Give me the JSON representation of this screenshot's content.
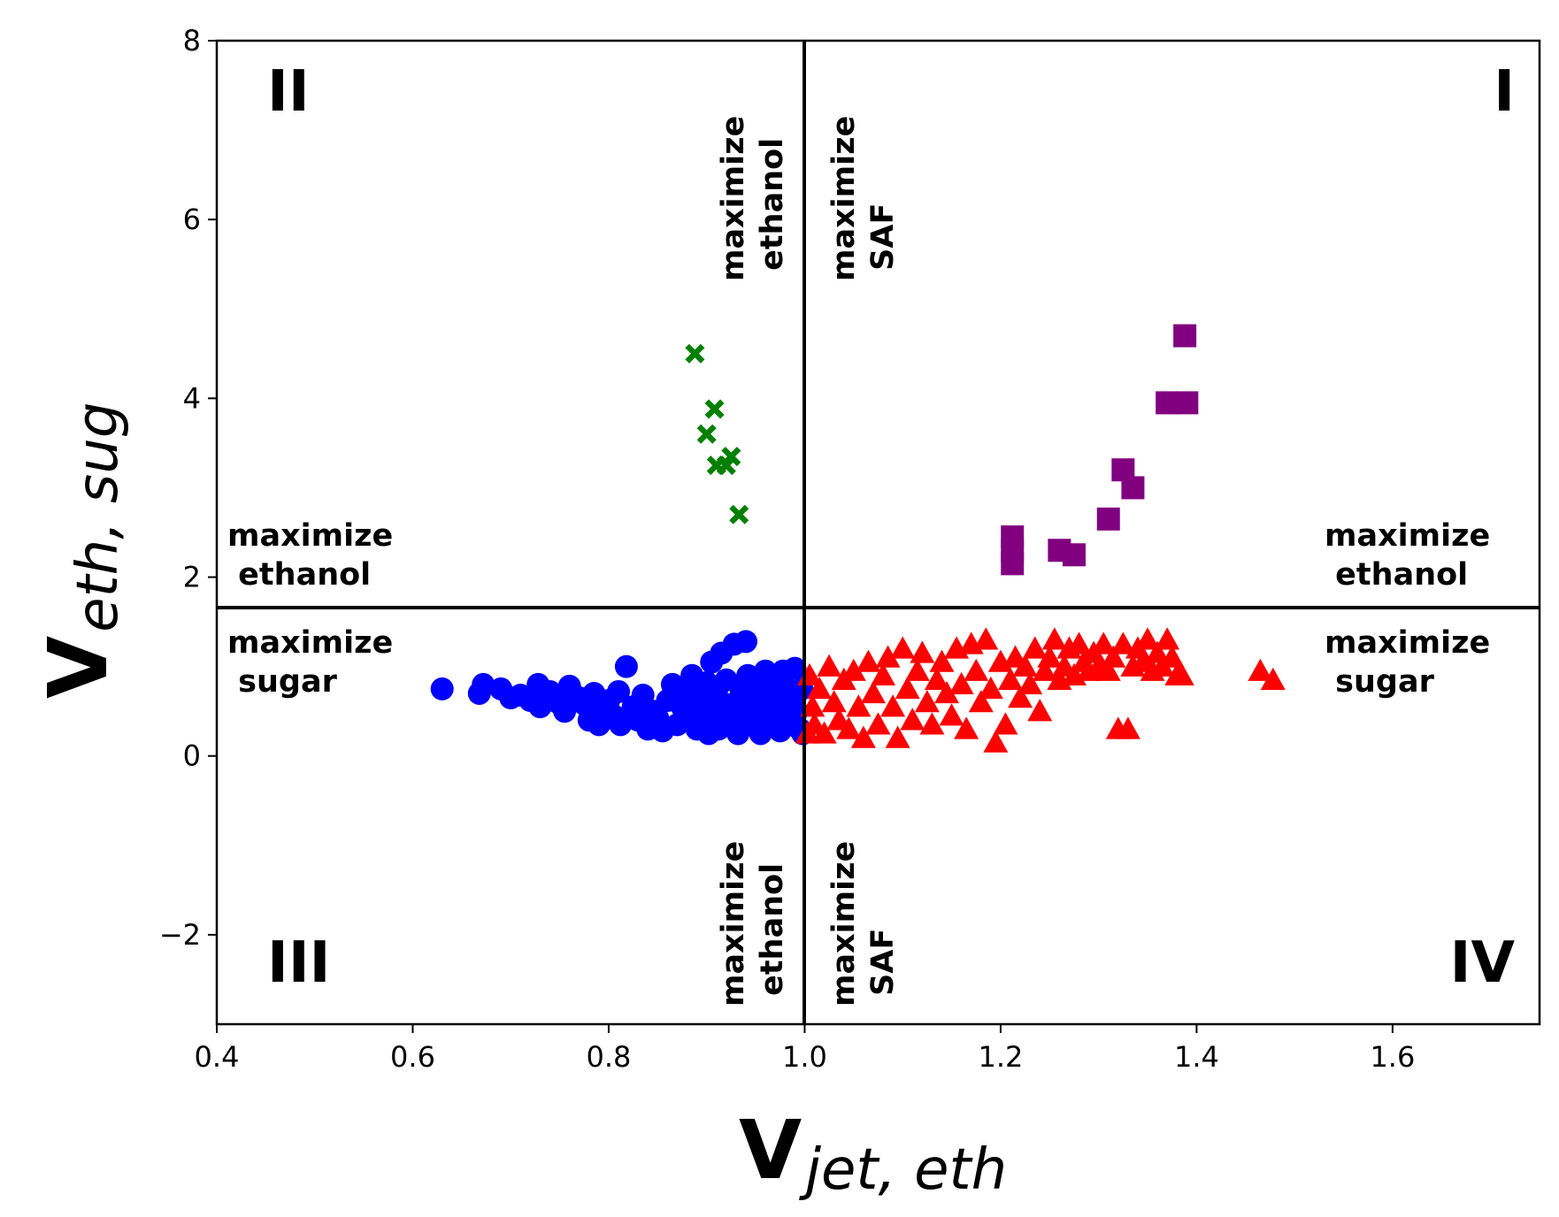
{
  "chart_data": {
    "type": "scatter",
    "xlabel": {
      "main": "V",
      "sub": "jet, eth"
    },
    "ylabel": {
      "main": "V",
      "sub": "eth, sug"
    },
    "xlim": [
      0.4,
      1.75
    ],
    "ylim": [
      -3,
      8
    ],
    "xticks": [
      "0.4",
      "0.6",
      "0.8",
      "1.0",
      "1.2",
      "1.4",
      "1.6"
    ],
    "yticks": [
      "−2",
      "0",
      "2",
      "4",
      "6",
      "8"
    ],
    "xtick_values": [
      0.4,
      0.6,
      0.8,
      1.0,
      1.2,
      1.4,
      1.6
    ],
    "ytick_values": [
      -2,
      0,
      2,
      4,
      6,
      8
    ],
    "grid": false,
    "reference_lines": {
      "vertical_x": 1.0,
      "horizontal_y": 1.65,
      "color": "#000000"
    },
    "quadrant_labels": {
      "I": "I",
      "II": "II",
      "III": "III",
      "IV": "IV"
    },
    "annotations": {
      "left_upper": "maximize\n ethanol",
      "left_lower": "maximize\n sugar",
      "right_upper": "maximize\n ethanol",
      "right_lower": "maximize\n sugar",
      "top_left_vertical": "maximize\n ethanol",
      "top_right_vertical": "maximize\n SAF",
      "bottom_left_vertical": "maximize\n ethanol",
      "bottom_right_vertical": "maximize\n SAF"
    },
    "series": [
      {
        "marker": "x-filled",
        "color": "#008000",
        "points": [
          [
            0.888,
            4.5
          ],
          [
            0.908,
            3.88
          ],
          [
            0.9,
            3.6
          ],
          [
            0.925,
            3.35
          ],
          [
            0.91,
            3.25
          ],
          [
            0.92,
            3.25
          ],
          [
            0.933,
            2.7
          ]
        ]
      },
      {
        "marker": "square",
        "color": "#800080",
        "points": [
          [
            1.388,
            4.7
          ],
          [
            1.37,
            3.95
          ],
          [
            1.39,
            3.95
          ],
          [
            1.325,
            3.2
          ],
          [
            1.335,
            3.0
          ],
          [
            1.31,
            2.65
          ],
          [
            1.212,
            2.45
          ],
          [
            1.212,
            2.3
          ],
          [
            1.212,
            2.15
          ],
          [
            1.26,
            2.3
          ],
          [
            1.275,
            2.25
          ]
        ]
      },
      {
        "marker": "circle",
        "color": "#0000ff",
        "points": [
          [
            0.63,
            0.75
          ],
          [
            0.668,
            0.7
          ],
          [
            0.672,
            0.8
          ],
          [
            0.69,
            0.75
          ],
          [
            0.7,
            0.65
          ],
          [
            0.71,
            0.68
          ],
          [
            0.72,
            0.62
          ],
          [
            0.728,
            0.8
          ],
          [
            0.73,
            0.55
          ],
          [
            0.74,
            0.72
          ],
          [
            0.748,
            0.6
          ],
          [
            0.755,
            0.5
          ],
          [
            0.76,
            0.78
          ],
          [
            0.77,
            0.65
          ],
          [
            0.775,
            0.58
          ],
          [
            0.78,
            0.4
          ],
          [
            0.785,
            0.7
          ],
          [
            0.79,
            0.35
          ],
          [
            0.795,
            0.5
          ],
          [
            0.8,
            0.62
          ],
          [
            0.805,
            0.45
          ],
          [
            0.81,
            0.72
          ],
          [
            0.812,
            0.35
          ],
          [
            0.818,
            1.0
          ],
          [
            0.825,
            0.55
          ],
          [
            0.83,
            0.4
          ],
          [
            0.835,
            0.68
          ],
          [
            0.84,
            0.3
          ],
          [
            0.845,
            0.5
          ],
          [
            0.85,
            0.42
          ],
          [
            0.855,
            0.28
          ],
          [
            0.86,
            0.62
          ],
          [
            0.865,
            0.8
          ],
          [
            0.87,
            0.35
          ],
          [
            0.875,
            0.55
          ],
          [
            0.88,
            0.7
          ],
          [
            0.882,
            0.45
          ],
          [
            0.885,
            0.9
          ],
          [
            0.89,
            0.3
          ],
          [
            0.895,
            0.65
          ],
          [
            0.9,
            0.5
          ],
          [
            0.9,
            0.82
          ],
          [
            0.902,
            0.25
          ],
          [
            0.905,
            1.05
          ],
          [
            0.908,
            0.4
          ],
          [
            0.91,
            0.72
          ],
          [
            0.912,
            0.3
          ],
          [
            0.915,
            1.15
          ],
          [
            0.918,
            0.58
          ],
          [
            0.92,
            0.85
          ],
          [
            0.922,
            0.45
          ],
          [
            0.925,
            0.35
          ],
          [
            0.928,
            1.25
          ],
          [
            0.93,
            0.6
          ],
          [
            0.932,
            0.25
          ],
          [
            0.935,
            0.75
          ],
          [
            0.938,
            0.5
          ],
          [
            0.94,
            1.28
          ],
          [
            0.942,
            0.9
          ],
          [
            0.945,
            0.35
          ],
          [
            0.948,
            0.65
          ],
          [
            0.95,
            0.45
          ],
          [
            0.952,
            0.8
          ],
          [
            0.955,
            0.25
          ],
          [
            0.958,
            0.55
          ],
          [
            0.96,
            0.95
          ],
          [
            0.962,
            0.7
          ],
          [
            0.965,
            0.35
          ],
          [
            0.968,
            0.5
          ],
          [
            0.97,
            0.85
          ],
          [
            0.972,
            0.6
          ],
          [
            0.975,
            0.28
          ],
          [
            0.978,
            0.95
          ],
          [
            0.98,
            0.45
          ],
          [
            0.982,
            0.75
          ],
          [
            0.985,
            0.35
          ],
          [
            0.988,
            0.6
          ],
          [
            0.99,
            0.98
          ],
          [
            0.992,
            0.5
          ],
          [
            0.995,
            0.3
          ],
          [
            0.997,
            0.75
          ],
          [
            0.998,
            0.25
          ]
        ]
      },
      {
        "marker": "triangle",
        "color": "#ff0000",
        "points": [
          [
            1.003,
            0.25
          ],
          [
            1.005,
            0.9
          ],
          [
            1.008,
            0.55
          ],
          [
            1.01,
            0.35
          ],
          [
            1.015,
            0.75
          ],
          [
            1.02,
            0.25
          ],
          [
            1.025,
            1.0
          ],
          [
            1.03,
            0.6
          ],
          [
            1.035,
            0.4
          ],
          [
            1.04,
            0.85
          ],
          [
            1.045,
            0.3
          ],
          [
            1.05,
            0.95
          ],
          [
            1.055,
            0.55
          ],
          [
            1.06,
            0.2
          ],
          [
            1.065,
            1.05
          ],
          [
            1.07,
            0.7
          ],
          [
            1.075,
            0.35
          ],
          [
            1.08,
            0.9
          ],
          [
            1.085,
            1.1
          ],
          [
            1.09,
            0.55
          ],
          [
            1.095,
            0.2
          ],
          [
            1.1,
            1.2
          ],
          [
            1.105,
            0.75
          ],
          [
            1.11,
            0.4
          ],
          [
            1.115,
            0.95
          ],
          [
            1.12,
            1.15
          ],
          [
            1.125,
            0.6
          ],
          [
            1.13,
            0.35
          ],
          [
            1.135,
            0.85
          ],
          [
            1.14,
            1.05
          ],
          [
            1.145,
            0.7
          ],
          [
            1.15,
            0.45
          ],
          [
            1.155,
            1.2
          ],
          [
            1.16,
            0.8
          ],
          [
            1.165,
            0.3
          ],
          [
            1.17,
            1.25
          ],
          [
            1.175,
            0.95
          ],
          [
            1.18,
            0.6
          ],
          [
            1.185,
            1.3
          ],
          [
            1.19,
            0.75
          ],
          [
            1.195,
            0.15
          ],
          [
            1.2,
            1.05
          ],
          [
            1.205,
            0.35
          ],
          [
            1.21,
            0.85
          ],
          [
            1.215,
            1.1
          ],
          [
            1.22,
            0.65
          ],
          [
            1.225,
            1.0
          ],
          [
            1.23,
            0.8
          ],
          [
            1.235,
            1.2
          ],
          [
            1.24,
            0.5
          ],
          [
            1.245,
            0.95
          ],
          [
            1.25,
            1.1
          ],
          [
            1.255,
            1.3
          ],
          [
            1.26,
            0.85
          ],
          [
            1.265,
            1.0
          ],
          [
            1.27,
            1.2
          ],
          [
            1.275,
            0.9
          ],
          [
            1.28,
            1.25
          ],
          [
            1.285,
            1.05
          ],
          [
            1.29,
            0.95
          ],
          [
            1.295,
            1.15
          ],
          [
            1.3,
            1.0
          ],
          [
            1.305,
            1.25
          ],
          [
            1.31,
            0.95
          ],
          [
            1.315,
            1.1
          ],
          [
            1.32,
            0.3
          ],
          [
            1.325,
            1.25
          ],
          [
            1.33,
            0.3
          ],
          [
            1.335,
            1.0
          ],
          [
            1.34,
            1.2
          ],
          [
            1.345,
            1.05
          ],
          [
            1.35,
            1.3
          ],
          [
            1.355,
            0.95
          ],
          [
            1.36,
            1.15
          ],
          [
            1.365,
            1.0
          ],
          [
            1.37,
            1.3
          ],
          [
            1.375,
            1.1
          ],
          [
            1.38,
            0.9
          ],
          [
            1.385,
            0.9
          ],
          [
            1.465,
            0.95
          ],
          [
            1.478,
            0.85
          ]
        ]
      }
    ]
  }
}
